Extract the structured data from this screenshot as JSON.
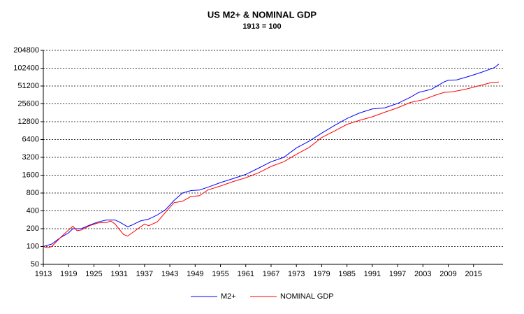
{
  "chart_data": {
    "type": "line",
    "title": "US M2+ & NOMINAL GDP",
    "subtitle": "1913 = 100",
    "log_scale": true,
    "grid": true,
    "legend": "bottom",
    "xlim": [
      1913,
      2022
    ],
    "xticks": [
      1913,
      1919,
      1925,
      1931,
      1937,
      1943,
      1949,
      1955,
      1961,
      1967,
      1973,
      1979,
      1985,
      1991,
      1997,
      2003,
      2009,
      2015
    ],
    "ylim": [
      50,
      204800
    ],
    "yticks": [
      50,
      100,
      200,
      400,
      800,
      1600,
      3200,
      6400,
      12800,
      25600,
      51200,
      102400,
      204800
    ],
    "series": [
      {
        "name": "M2+",
        "color": "#0000ff",
        "x": [
          1913,
          1915,
          1917,
          1919,
          1920,
          1922,
          1924,
          1926,
          1928,
          1930,
          1931,
          1933,
          1934,
          1936,
          1938,
          1940,
          1942,
          1944,
          1946,
          1948,
          1950,
          1952,
          1955,
          1958,
          1961,
          1964,
          1967,
          1970,
          1973,
          1976,
          1979,
          1982,
          1985,
          1988,
          1991,
          1994,
          1997,
          2000,
          2002,
          2005,
          2008,
          2009,
          2011,
          2014,
          2017,
          2020,
          2021
        ],
        "values": [
          100,
          110,
          140,
          170,
          200,
          200,
          230,
          260,
          280,
          280,
          260,
          215,
          230,
          270,
          290,
          340,
          420,
          600,
          800,
          880,
          900,
          1000,
          1200,
          1400,
          1650,
          2100,
          2700,
          3200,
          4600,
          6000,
          8200,
          11000,
          14500,
          18000,
          21000,
          22000,
          26000,
          33000,
          40000,
          45000,
          60000,
          64000,
          65000,
          75000,
          88000,
          105000,
          120000
        ]
      },
      {
        "name": "NOMINAL GDP",
        "color": "#ff0000",
        "x": [
          1913,
          1914,
          1915,
          1917,
          1919,
          1920,
          1921,
          1922,
          1924,
          1926,
          1928,
          1929,
          1930,
          1932,
          1933,
          1935,
          1937,
          1938,
          1940,
          1942,
          1944,
          1946,
          1948,
          1950,
          1952,
          1955,
          1958,
          1961,
          1964,
          1967,
          1970,
          1973,
          1976,
          1979,
          1982,
          1985,
          1988,
          1991,
          1994,
          1997,
          2000,
          2003,
          2006,
          2008,
          2010,
          2013,
          2016,
          2019,
          2021
        ],
        "values": [
          100,
          95,
          100,
          140,
          190,
          220,
          185,
          190,
          225,
          250,
          255,
          270,
          240,
          160,
          150,
          190,
          240,
          225,
          260,
          380,
          550,
          580,
          700,
          720,
          900,
          1050,
          1250,
          1450,
          1750,
          2250,
          2700,
          3600,
          4700,
          6900,
          8900,
          11500,
          13500,
          15500,
          18500,
          22000,
          27000,
          30000,
          36000,
          40000,
          41000,
          45000,
          51000,
          58000,
          60000
        ]
      }
    ]
  }
}
